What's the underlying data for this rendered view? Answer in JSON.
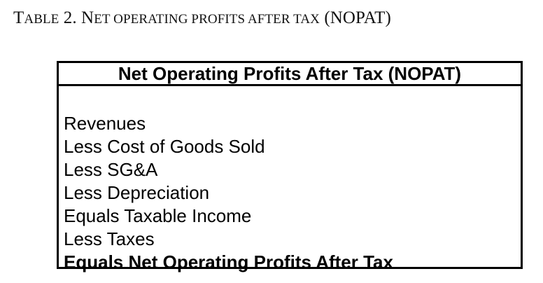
{
  "caption": {
    "lead_letter": "T",
    "lead_rest": "ABLE",
    "number": " 2. ",
    "title_initial": "N",
    "title_rest": "ET OPERATING PROFITS AFTER TAX",
    "abbrev": " (NOPAT)"
  },
  "table": {
    "header": "Net Operating Profits After Tax (NOPAT)",
    "rows": [
      {
        "label": "Revenues",
        "bold": false
      },
      {
        "label": "Less Cost of Goods Sold",
        "bold": false
      },
      {
        "label": "Less SG&A",
        "bold": false
      },
      {
        "label": "Less Depreciation",
        "bold": false
      },
      {
        "label": "Equals Taxable Income",
        "bold": false
      },
      {
        "label": "Less Taxes",
        "bold": false
      },
      {
        "label": "Equals Net Operating Profits After Tax",
        "bold": true
      }
    ]
  }
}
